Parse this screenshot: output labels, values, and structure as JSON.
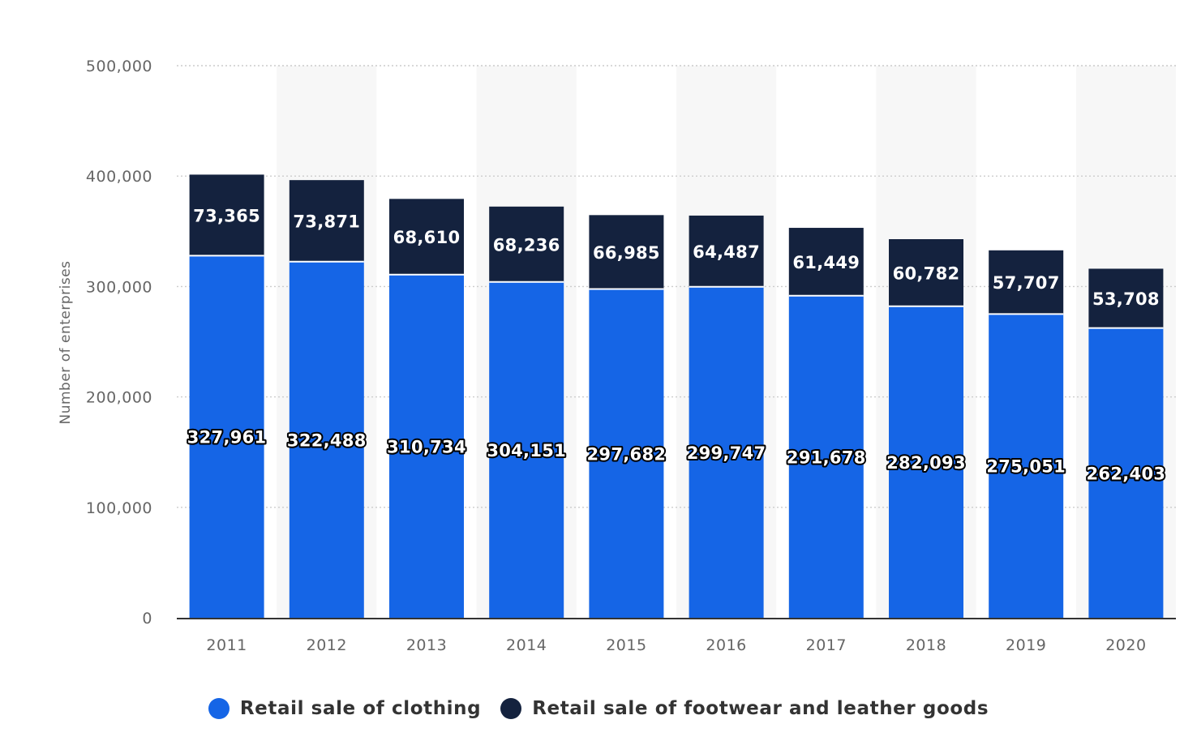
{
  "colors": {
    "clothing": "#1565e6",
    "footwear": "#14223e",
    "grid": "#cccccc",
    "band": "#f7f7f7",
    "axis": "#333333"
  },
  "chart_data": {
    "type": "bar",
    "stacked": true,
    "categories": [
      "2011",
      "2012",
      "2013",
      "2014",
      "2015",
      "2016",
      "2017",
      "2018",
      "2019",
      "2020"
    ],
    "series": [
      {
        "name": "Retail sale of clothing",
        "values": [
          327961,
          322488,
          310734,
          304151,
          297682,
          299747,
          291678,
          282093,
          275051,
          262403
        ],
        "labels": [
          "327,961",
          "322,488",
          "310,734",
          "304,151",
          "297,682",
          "299,747",
          "291,678",
          "282,093",
          "275,051",
          "262,403"
        ]
      },
      {
        "name": "Retail sale of footwear and leather goods",
        "values": [
          73365,
          73871,
          68610,
          68236,
          66985,
          64487,
          61449,
          60782,
          57707,
          53708
        ],
        "labels": [
          "73,365",
          "73,871",
          "68,610",
          "68,236",
          "66,985",
          "64,487",
          "61,449",
          "60,782",
          "57,707",
          "53,708"
        ]
      }
    ],
    "ylabel": "Number of enterprises",
    "ylim": [
      0,
      500000
    ],
    "yticks": [
      0,
      100000,
      200000,
      300000,
      400000,
      500000
    ],
    "ytick_labels": [
      "0",
      "100,000",
      "200,000",
      "300,000",
      "400,000",
      "500,000"
    ],
    "grid": true,
    "legend_position": "bottom"
  }
}
